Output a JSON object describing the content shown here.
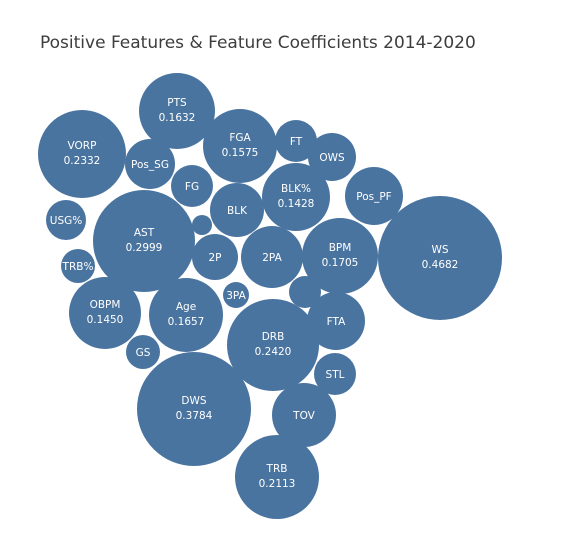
{
  "chart_data": {
    "type": "bubble",
    "title": "Positive Features & Feature Coefficients 2014-2020",
    "color": "#4a74a0",
    "label_color": "#ffffff",
    "items": [
      {
        "name": "WS",
        "value": 0.4682,
        "value_label": "0.4682"
      },
      {
        "name": "DWS",
        "value": 0.3784,
        "value_label": "0.3784"
      },
      {
        "name": "AST",
        "value": 0.2999,
        "value_label": "0.2999"
      },
      {
        "name": "DRB",
        "value": 0.242,
        "value_label": "0.2420"
      },
      {
        "name": "VORP",
        "value": 0.2332,
        "value_label": "0.2332"
      },
      {
        "name": "TRB",
        "value": 0.2113,
        "value_label": "0.2113"
      },
      {
        "name": "BPM",
        "value": 0.1705,
        "value_label": "0.1705"
      },
      {
        "name": "Age",
        "value": 0.1657,
        "value_label": "0.1657"
      },
      {
        "name": "PTS",
        "value": 0.1632,
        "value_label": "0.1632"
      },
      {
        "name": "FGA",
        "value": 0.1575,
        "value_label": "0.1575"
      },
      {
        "name": "OBPM",
        "value": 0.145,
        "value_label": "0.1450"
      },
      {
        "name": "BLK%",
        "value": 0.1428,
        "value_label": "0.1428"
      },
      {
        "name": "2PA"
      },
      {
        "name": "TOV"
      },
      {
        "name": "Pos_PF"
      },
      {
        "name": "FTA"
      },
      {
        "name": "BLK"
      },
      {
        "name": "Pos_SG"
      },
      {
        "name": "OWS"
      },
      {
        "name": "FG"
      },
      {
        "name": "2P"
      },
      {
        "name": "USG%"
      },
      {
        "name": "STL"
      },
      {
        "name": "FT"
      },
      {
        "name": "GS"
      },
      {
        "name": "TRB%"
      },
      {
        "name": "3PA"
      },
      {
        "name": ""
      },
      {
        "name": ""
      }
    ]
  }
}
